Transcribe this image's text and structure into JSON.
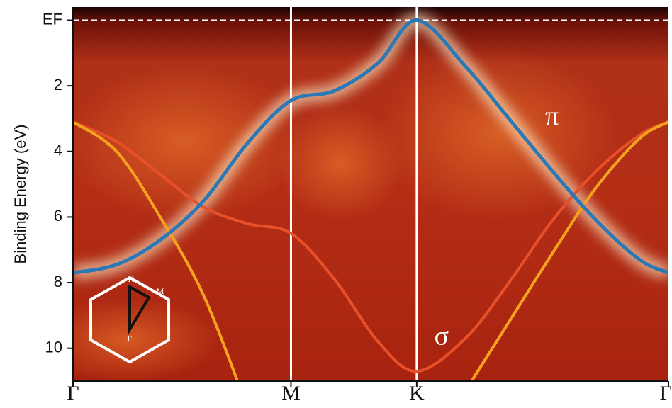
{
  "chart_data": {
    "type": "line",
    "y_label": "Binding Energy (eV)",
    "x": [
      0,
      0.2,
      0.4,
      0.6,
      0.8,
      1,
      1.2,
      1.4,
      1.577,
      1.8,
      2.0,
      2.2,
      2.4,
      2.6,
      2.732
    ],
    "xlim": [
      0,
      2.732
    ],
    "xticks": [
      {
        "value": 0,
        "label": "Γ"
      },
      {
        "value": 1,
        "label": "M"
      },
      {
        "value": 1.577,
        "label": "K"
      },
      {
        "value": 2.732,
        "label": "Γ"
      }
    ],
    "ylim": [
      11,
      -0.4
    ],
    "yticks": [
      {
        "value": 0,
        "label": "EF"
      },
      2,
      4,
      6,
      8,
      10
    ],
    "series": [
      {
        "name": "π",
        "color": "#2a78b5",
        "values": [
          7.7,
          7.45,
          6.7,
          5.5,
          3.75,
          2.45,
          2.15,
          1.3,
          0,
          1.4,
          3.0,
          4.6,
          6.1,
          7.3,
          7.7
        ]
      },
      {
        "color": "#f5a21c",
        "values": [
          3.1,
          4.0,
          6.0,
          8.4,
          11.8,
          null,
          null,
          null,
          null,
          11.3,
          9.2,
          7.1,
          5.1,
          3.6,
          3.1
        ]
      },
      {
        "name": "σ",
        "color": "#e8502a",
        "values": [
          3.1,
          3.7,
          4.7,
          5.7,
          6.2,
          6.5,
          7.9,
          9.8,
          10.7,
          9.7,
          8.0,
          6.1,
          4.6,
          3.5,
          3.1
        ]
      }
    ]
  },
  "inset_labels": [
    "K",
    "M",
    "Γ"
  ]
}
